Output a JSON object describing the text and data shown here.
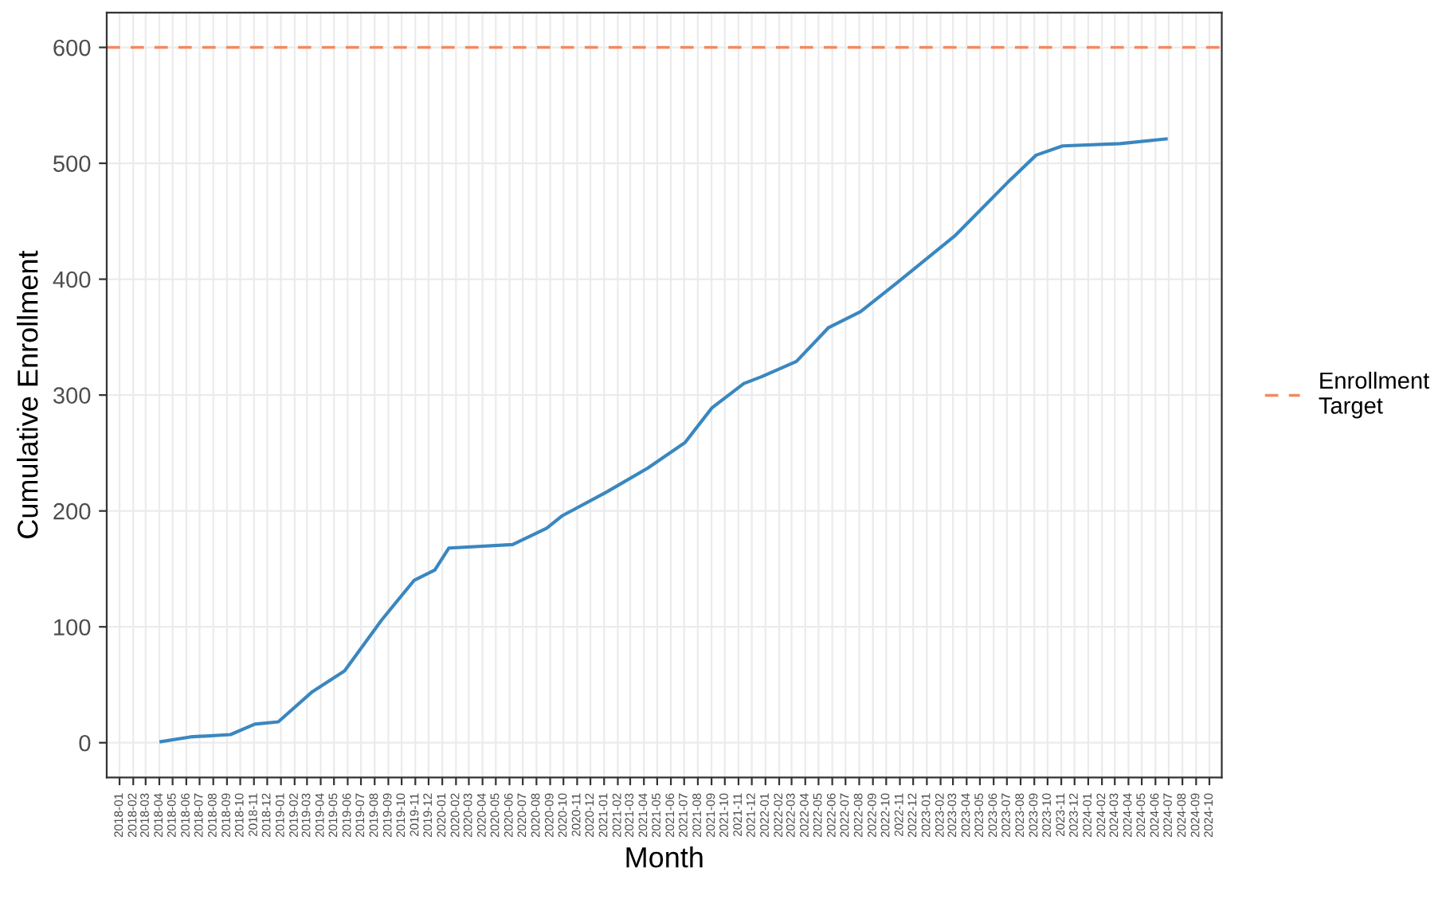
{
  "chart_data": {
    "type": "line",
    "xlabel": "Month",
    "ylabel": "Cumulative Enrollment",
    "x": [
      "2018-04-05",
      "2018-06-10",
      "2018-09-09",
      "2018-11-03",
      "2018-12-26",
      "2019-03-13",
      "2019-05-25",
      "2019-08-17",
      "2019-10-29",
      "2019-12-15",
      "2020-01-16",
      "2020-06-08",
      "2020-08-24",
      "2020-09-29",
      "2021-01-05",
      "2021-04-10",
      "2021-07-03",
      "2021-09-02",
      "2021-11-13",
      "2021-12-24",
      "2022-03-12",
      "2022-05-23",
      "2022-08-04",
      "2022-10-26",
      "2022-12-26",
      "2023-03-07",
      "2023-07-04",
      "2023-09-05",
      "2023-11-04",
      "2024-03-13",
      "2024-06-25"
    ],
    "series": [
      {
        "color": "#3a87c0",
        "values": [
          1,
          5,
          7,
          16,
          18,
          44,
          62,
          106,
          140,
          149,
          168,
          171,
          185,
          196,
          216,
          237,
          259,
          289,
          310,
          316,
          329,
          358,
          372,
          397,
          416,
          438,
          484,
          507,
          515,
          517,
          521
        ]
      }
    ],
    "ylim": [
      -30,
      630
    ],
    "yticks": [
      0,
      100,
      200,
      300,
      400,
      500,
      600
    ],
    "xlim": [
      "2017-12-03",
      "2024-10-29"
    ],
    "xticks": [
      "2018-01",
      "2018-02",
      "2018-03",
      "2018-04",
      "2018-05",
      "2018-06",
      "2018-07",
      "2018-08",
      "2018-09",
      "2018-10",
      "2018-11",
      "2018-12",
      "2019-01",
      "2019-02",
      "2019-03",
      "2019-04",
      "2019-05",
      "2019-06",
      "2019-07",
      "2019-08",
      "2019-09",
      "2019-10",
      "2019-11",
      "2019-12",
      "2020-01",
      "2020-02",
      "2020-03",
      "2020-04",
      "2020-05",
      "2020-06",
      "2020-07",
      "2020-08",
      "2020-09",
      "2020-10",
      "2020-11",
      "2020-12",
      "2021-01",
      "2021-02",
      "2021-03",
      "2021-04",
      "2021-05",
      "2021-06",
      "2021-07",
      "2021-08",
      "2021-09",
      "2021-10",
      "2021-11",
      "2021-12",
      "2022-01",
      "2022-02",
      "2022-03",
      "2022-04",
      "2022-05",
      "2022-06",
      "2022-07",
      "2022-08",
      "2022-09",
      "2022-10",
      "2022-11",
      "2022-12",
      "2023-01",
      "2023-02",
      "2023-03",
      "2023-04",
      "2023-05",
      "2023-06",
      "2023-07",
      "2023-08",
      "2023-09",
      "2023-10",
      "2023-11",
      "2023-12",
      "2024-01",
      "2024-02",
      "2024-03",
      "2024-04",
      "2024-05",
      "2024-06",
      "2024-07",
      "2024-08",
      "2024-09",
      "2024-10"
    ],
    "ref_lines": [
      {
        "axis": "y",
        "value": 600,
        "label": "Enrollment\nTarget",
        "color": "#f4895f",
        "line_style": "dashed"
      }
    ],
    "grid": true,
    "legend": "right",
    "marker": "none",
    "line_style": "solid"
  }
}
